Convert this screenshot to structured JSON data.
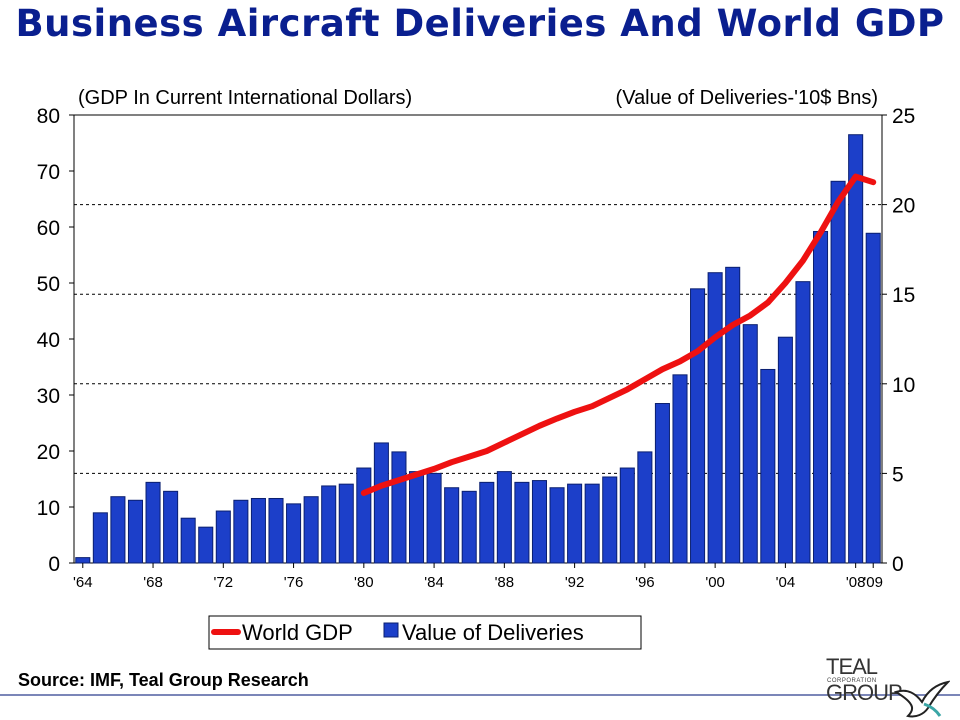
{
  "title": "Business Aircraft Deliveries And World GDP",
  "source": "Source: IMF, Teal Group Research",
  "logo": {
    "text": "TEAL GROUP",
    "subtext": "CORPORATION"
  },
  "colors": {
    "title": "#0a1f8f",
    "bar_fill": "#1c3fc9",
    "bar_edge": "#0a1f70",
    "line": "#ee1111"
  },
  "chart_data": {
    "type": "bar",
    "title": "",
    "left_axis_label": "(GDP In Current International Dollars)",
    "right_axis_label": "(Value of Deliveries-'10$ Bns)",
    "left_ylim": [
      0,
      80
    ],
    "left_yticks": [
      0,
      10,
      20,
      30,
      40,
      50,
      60,
      70,
      80
    ],
    "right_ylim": [
      0,
      25
    ],
    "right_yticks": [
      0,
      5,
      10,
      15,
      20,
      25
    ],
    "gridlines": "dashed horizontal at right-axis 5, 10, 15, 20",
    "x_tick_labels": [
      "'64",
      "'68",
      "'72",
      "'76",
      "'80",
      "'84",
      "'88",
      "'92",
      "'96",
      "'00",
      "'04",
      "'08",
      "'09"
    ],
    "legend_position": "bottom",
    "series": [
      {
        "name": "Value of Deliveries",
        "type": "bar",
        "axis": "right",
        "x": [
          1964,
          1965,
          1966,
          1967,
          1968,
          1969,
          1970,
          1971,
          1972,
          1973,
          1974,
          1975,
          1976,
          1977,
          1978,
          1979,
          1980,
          1981,
          1982,
          1983,
          1984,
          1985,
          1986,
          1987,
          1988,
          1989,
          1990,
          1991,
          1992,
          1993,
          1994,
          1995,
          1996,
          1997,
          1998,
          1999,
          2000,
          2001,
          2002,
          2003,
          2004,
          2005,
          2006,
          2007,
          2008,
          2009
        ],
        "values": [
          0.3,
          2.8,
          3.7,
          3.5,
          4.5,
          4.0,
          2.5,
          2.0,
          2.9,
          3.5,
          3.6,
          3.6,
          3.3,
          3.7,
          4.3,
          4.4,
          5.3,
          6.7,
          6.2,
          5.1,
          5.0,
          4.2,
          4.0,
          4.5,
          5.1,
          4.5,
          4.6,
          4.2,
          4.4,
          4.4,
          4.8,
          5.3,
          6.2,
          8.9,
          10.5,
          15.3,
          16.2,
          16.5,
          13.3,
          10.8,
          12.6,
          15.7,
          18.5,
          21.3,
          23.9,
          18.4
        ]
      },
      {
        "name": "World GDP",
        "type": "line",
        "axis": "left",
        "x": [
          1980,
          1981,
          1982,
          1983,
          1984,
          1985,
          1986,
          1987,
          1988,
          1989,
          1990,
          1991,
          1992,
          1993,
          1994,
          1995,
          1996,
          1997,
          1998,
          1999,
          2000,
          2001,
          2002,
          2003,
          2004,
          2005,
          2006,
          2007,
          2008,
          2009
        ],
        "values": [
          12.5,
          13.8,
          14.8,
          15.8,
          16.8,
          18.0,
          19.0,
          20.0,
          21.5,
          23.0,
          24.5,
          25.8,
          27.0,
          28.0,
          29.5,
          31.0,
          32.8,
          34.6,
          36.0,
          37.8,
          40.3,
          42.5,
          44.2,
          46.5,
          50.0,
          54.0,
          59.0,
          64.5,
          69.0,
          68.0
        ]
      }
    ]
  }
}
